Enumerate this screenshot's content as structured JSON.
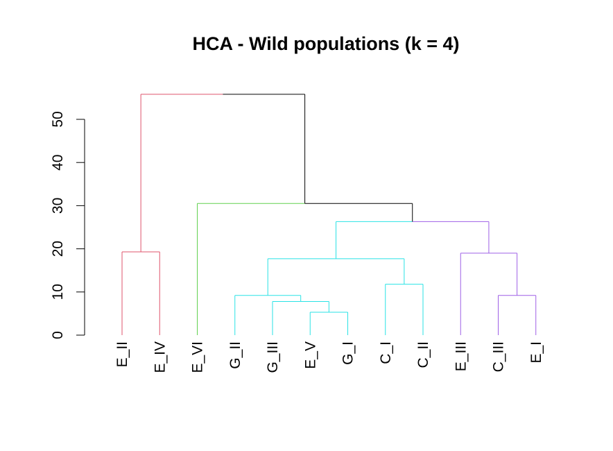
{
  "chart_data": {
    "type": "dendrogram",
    "title": "HCA - Wild populations (k = 4)",
    "xlabel": "",
    "ylabel": "",
    "ylim": [
      0,
      55
    ],
    "yticks": [
      0,
      10,
      20,
      30,
      40,
      50
    ],
    "leaves": [
      "E_II",
      "E_IV",
      "E_VI",
      "G_II",
      "G_III",
      "E_V",
      "G_I",
      "C_I",
      "C_II",
      "E_III",
      "C_III",
      "E_I"
    ],
    "merges": [
      {
        "left": "E_V",
        "right": "G_I",
        "height": 5.3,
        "cluster": 3
      },
      {
        "left": "G_III",
        "right": "m1",
        "height": 7.8,
        "cluster": 3
      },
      {
        "left": "C_III",
        "right": "E_I",
        "height": 9.2,
        "cluster": 4
      },
      {
        "left": "G_II",
        "right": "m2",
        "height": 9.2,
        "cluster": 3
      },
      {
        "left": "C_I",
        "right": "C_II",
        "height": 11.8,
        "cluster": 3
      },
      {
        "left": "m4",
        "right": "m5",
        "height": 17.7,
        "cluster": 3
      },
      {
        "left": "E_III",
        "right": "m3",
        "height": 19.0,
        "cluster": 4
      },
      {
        "left": "E_II",
        "right": "E_IV",
        "height": 19.3,
        "cluster": 1
      },
      {
        "left": "m6",
        "right": "m7",
        "height": 26.3,
        "cluster": 0
      },
      {
        "left": "E_VI",
        "right": "m9",
        "height": 30.5,
        "cluster": 0
      },
      {
        "left": "m8",
        "right": "m10",
        "height": 55.8,
        "cluster": 0
      }
    ],
    "cluster_colors": [
      "#000000",
      "#DF536B",
      "#61D04F",
      "#28E2E5",
      "#9E5FE6"
    ],
    "leaf_clusters": [
      1,
      1,
      2,
      3,
      3,
      3,
      3,
      3,
      3,
      4,
      4,
      4
    ]
  }
}
